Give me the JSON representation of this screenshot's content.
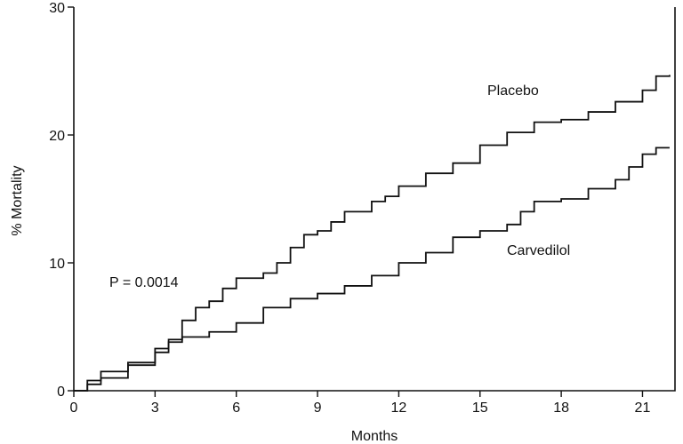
{
  "chart_data": {
    "type": "line",
    "title": "",
    "xlabel": "Months",
    "ylabel": "% Mortality",
    "xlim": [
      0,
      22.2
    ],
    "ylim": [
      0,
      30
    ],
    "x_ticks": [
      "0",
      "3",
      "6",
      "9",
      "12",
      "15",
      "18",
      "21"
    ],
    "y_ticks": [
      "0",
      "10",
      "20",
      "30"
    ],
    "grid": false,
    "legend": "none",
    "annotation": "P = 0.0014",
    "series": [
      {
        "name": "Placebo",
        "points": [
          [
            0,
            0
          ],
          [
            0.5,
            0.5
          ],
          [
            1.0,
            1.0
          ],
          [
            2.0,
            2.0
          ],
          [
            3.0,
            3.0
          ],
          [
            3.5,
            4.0
          ],
          [
            4.0,
            5.5
          ],
          [
            4.5,
            6.5
          ],
          [
            5.0,
            7.0
          ],
          [
            5.5,
            8.0
          ],
          [
            6.0,
            8.8
          ],
          [
            7.0,
            9.2
          ],
          [
            7.5,
            10.0
          ],
          [
            8.0,
            11.2
          ],
          [
            8.5,
            12.2
          ],
          [
            9.0,
            12.5
          ],
          [
            9.5,
            13.2
          ],
          [
            10.0,
            14.0
          ],
          [
            11.0,
            14.8
          ],
          [
            11.5,
            15.2
          ],
          [
            12.0,
            16.0
          ],
          [
            13.0,
            17.0
          ],
          [
            14.0,
            17.8
          ],
          [
            15.0,
            19.2
          ],
          [
            16.0,
            20.2
          ],
          [
            17.0,
            21.0
          ],
          [
            18.0,
            21.2
          ],
          [
            19.0,
            21.8
          ],
          [
            20.0,
            22.6
          ],
          [
            21.0,
            23.5
          ],
          [
            21.5,
            24.6
          ],
          [
            22.0,
            24.7
          ]
        ]
      },
      {
        "name": "Carvedilol",
        "points": [
          [
            0,
            0
          ],
          [
            0.5,
            0.8
          ],
          [
            1.0,
            1.5
          ],
          [
            2.0,
            2.2
          ],
          [
            3.0,
            3.3
          ],
          [
            3.5,
            3.8
          ],
          [
            4.0,
            4.2
          ],
          [
            5.0,
            4.6
          ],
          [
            6.0,
            5.3
          ],
          [
            7.0,
            6.5
          ],
          [
            8.0,
            7.2
          ],
          [
            9.0,
            7.6
          ],
          [
            10.0,
            8.2
          ],
          [
            11.0,
            9.0
          ],
          [
            12.0,
            10.0
          ],
          [
            13.0,
            10.8
          ],
          [
            14.0,
            12.0
          ],
          [
            15.0,
            12.5
          ],
          [
            16.0,
            13.0
          ],
          [
            16.5,
            14.0
          ],
          [
            17.0,
            14.8
          ],
          [
            18.0,
            15.0
          ],
          [
            19.0,
            15.8
          ],
          [
            20.0,
            16.5
          ],
          [
            20.5,
            17.5
          ],
          [
            21.0,
            18.5
          ],
          [
            21.5,
            19.0
          ],
          [
            22.0,
            19.0
          ]
        ]
      }
    ]
  }
}
